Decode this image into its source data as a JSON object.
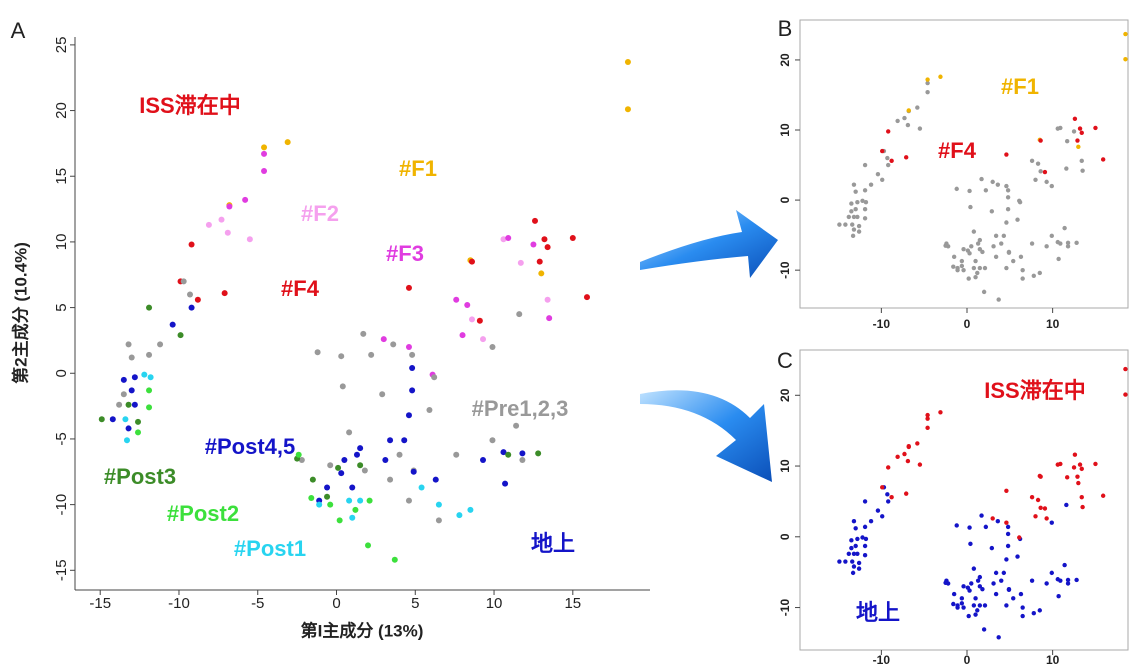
{
  "chart_data": [
    {
      "type": "scatter",
      "panel": "A",
      "xlabel": "第I主成分 (13%)",
      "ylabel": "第2主成分 (10.4%)",
      "xlim": [
        -16.6,
        19.9
      ],
      "ylim": [
        -16.5,
        25.6
      ],
      "xticks": [
        -15,
        -10,
        -5,
        0,
        5,
        10,
        15
      ],
      "yticks": [
        -15,
        -10,
        -5,
        0,
        5,
        10,
        15,
        20,
        25
      ],
      "annotations": [
        {
          "text": "ISS滞在中",
          "color": "#e0101a"
        },
        {
          "text": "地上",
          "color": "#1414c8"
        }
      ],
      "series": [
        {
          "name": "#F1",
          "color": "#f0b400",
          "x": [
            18.5,
            18.5,
            -4.6,
            -3.1,
            -6.8,
            8.5,
            13.0
          ],
          "y": [
            23.7,
            20.1,
            17.2,
            17.6,
            12.8,
            8.6,
            7.6
          ]
        },
        {
          "name": "#F2",
          "color": "#f5a0ee",
          "x": [
            -8.1,
            -6.9,
            -5.5,
            -7.3,
            10.6,
            11.7,
            13.4,
            8.6,
            9.3
          ],
          "y": [
            11.3,
            10.7,
            10.2,
            11.7,
            10.2,
            8.4,
            5.6,
            4.1,
            2.6
          ]
        },
        {
          "name": "#F3",
          "color": "#e03ce0",
          "x": [
            -4.6,
            -4.6,
            -5.8,
            -6.8,
            10.9,
            12.5,
            7.6,
            8.3,
            13.5,
            3.0,
            4.6,
            6.1,
            8.0
          ],
          "y": [
            16.7,
            15.4,
            13.2,
            12.7,
            10.3,
            9.8,
            5.6,
            5.2,
            4.2,
            2.6,
            2.0,
            -0.1,
            2.9
          ]
        },
        {
          "name": "#F4",
          "color": "#e0101a",
          "x": [
            -9.2,
            -9.9,
            -8.8,
            -7.1,
            4.6,
            8.6,
            9.1,
            12.6,
            13.2,
            15.0,
            15.9,
            12.9,
            13.4
          ],
          "y": [
            9.8,
            7.0,
            5.6,
            6.1,
            6.5,
            8.5,
            4.0,
            11.6,
            10.2,
            10.3,
            5.8,
            8.5,
            9.6
          ]
        },
        {
          "name": "#Pre1,2,3",
          "color": "#999999",
          "x": [
            -13.2,
            -13.0,
            -11.9,
            -11.2,
            -9.7,
            -9.3,
            -1.2,
            0.3,
            1.7,
            2.2,
            3.6,
            4.8,
            6.2,
            0.4,
            2.9,
            5.9,
            0.8,
            4.9,
            4.0,
            7.6,
            9.9,
            11.4,
            11.8,
            -0.4,
            1.8,
            3.4,
            4.6,
            -2.2,
            6.5,
            9.9,
            11.6,
            -13.8,
            -13.5
          ],
          "y": [
            2.2,
            1.2,
            1.4,
            2.2,
            7.0,
            6.0,
            1.6,
            1.3,
            3.0,
            1.4,
            2.2,
            1.4,
            -0.3,
            -1.0,
            -1.6,
            -2.8,
            -4.5,
            -7.4,
            -6.2,
            -6.2,
            -5.1,
            -4.0,
            -6.6,
            -7.0,
            -7.4,
            -8.1,
            -9.7,
            -6.6,
            -11.2,
            2.0,
            4.5,
            -2.4,
            -1.6
          ]
        },
        {
          "name": "#Post4,5",
          "color": "#1414c8",
          "x": [
            -9.2,
            -10.4,
            -12.8,
            -13.0,
            -12.8,
            -13.2,
            -14.2,
            4.8,
            4.8,
            4.6,
            3.4,
            4.3,
            0.5,
            1.5,
            9.3,
            10.6,
            10.7,
            11.8,
            3.1,
            0.3,
            -0.6,
            1.0,
            4.9,
            6.3,
            -1.1,
            1.3,
            -13.5
          ],
          "y": [
            5.0,
            3.7,
            -0.3,
            -1.3,
            -2.4,
            -4.2,
            -3.5,
            0.4,
            -1.3,
            -3.2,
            -5.1,
            -5.1,
            -6.6,
            -5.7,
            -6.6,
            -6.0,
            -8.4,
            -6.1,
            -6.6,
            -7.6,
            -8.7,
            -8.7,
            -7.5,
            -8.1,
            -9.7,
            -6.2,
            -0.5
          ]
        },
        {
          "name": "#Post3",
          "color": "#3c8c28",
          "x": [
            -11.9,
            -9.9,
            -13.2,
            -14.9,
            -12.6,
            -2.5,
            -1.5,
            0.1,
            1.5,
            10.9,
            12.8,
            -0.6
          ],
          "y": [
            5.0,
            2.9,
            -2.4,
            -3.5,
            -3.7,
            -6.5,
            -8.1,
            -7.2,
            -7.0,
            -6.2,
            -6.1,
            -9.4
          ]
        },
        {
          "name": "#Post2",
          "color": "#3ce03c",
          "x": [
            -11.9,
            -11.9,
            -12.6,
            -2.4,
            -1.6,
            -0.4,
            1.2,
            2.0,
            3.7,
            2.1,
            0.2
          ],
          "y": [
            -1.3,
            -2.6,
            -4.5,
            -6.2,
            -9.5,
            -10.0,
            -10.4,
            -13.1,
            -14.2,
            -9.7,
            -11.2
          ]
        },
        {
          "name": "#Post1",
          "color": "#28d4f0",
          "x": [
            -13.4,
            -13.3,
            -12.2,
            -11.8,
            0.8,
            1.5,
            1.0,
            5.4,
            6.5,
            8.5,
            7.8,
            -1.1
          ],
          "y": [
            -3.5,
            -5.1,
            -0.1,
            -0.3,
            -9.7,
            -9.7,
            -11.0,
            -8.7,
            -10.0,
            -10.4,
            -10.8,
            -10.0
          ]
        }
      ]
    },
    {
      "type": "scatter",
      "panel": "B",
      "xlim": [
        -19.5,
        18.8
      ],
      "ylim": [
        -15.4,
        25.7
      ],
      "xticks": [
        -10,
        0,
        10
      ],
      "yticks": [
        -10,
        0,
        10,
        20
      ],
      "series": [
        {
          "color": "#999999",
          "x": [
            -8.1,
            -6.9,
            -5.5,
            -7.3,
            10.6,
            11.7,
            13.4,
            8.6,
            9.3,
            -4.6,
            -4.6,
            -5.8,
            -6.8,
            10.9,
            12.5,
            7.6,
            8.3,
            13.5,
            3.0,
            4.6,
            6.1,
            8.0,
            -13.2,
            -13.0,
            -11.9,
            -11.2,
            -9.7,
            -9.3,
            -1.2,
            0.3,
            1.7,
            2.2,
            3.6,
            4.8,
            6.2,
            0.4,
            2.9,
            5.9,
            0.8,
            4.9,
            4.0,
            7.6,
            9.9,
            11.4,
            11.8,
            -0.4,
            1.8,
            3.4,
            4.6,
            -2.2,
            6.5,
            9.9,
            11.6,
            -13.8,
            -13.5,
            -9.2,
            -10.4,
            -12.8,
            -13.0,
            -12.8,
            -13.2,
            -14.2,
            4.8,
            4.8,
            4.6,
            3.4,
            4.3,
            0.5,
            1.5,
            9.3,
            10.6,
            10.7,
            11.8,
            3.1,
            0.3,
            -0.6,
            1.0,
            4.9,
            6.3,
            -1.1,
            1.3,
            -13.5,
            -11.9,
            -9.9,
            -13.2,
            -14.9,
            -12.6,
            -2.5,
            -1.5,
            0.1,
            1.5,
            10.9,
            12.8,
            -0.6,
            -11.9,
            -11.9,
            -12.6,
            -2.4,
            -1.6,
            -0.4,
            1.2,
            2.0,
            3.7,
            2.1,
            0.2,
            -13.4,
            -13.3,
            -12.2,
            -11.8,
            0.8,
            1.5,
            1.0,
            5.4,
            6.5,
            8.5,
            7.8,
            -1.1
          ],
          "y": [
            11.3,
            10.7,
            10.2,
            11.7,
            10.2,
            8.4,
            5.6,
            4.1,
            2.6,
            16.7,
            15.4,
            13.2,
            12.7,
            10.3,
            9.8,
            5.6,
            5.2,
            4.2,
            2.6,
            2.0,
            -0.1,
            2.9,
            2.2,
            1.2,
            1.4,
            2.2,
            7.0,
            6.0,
            1.6,
            1.3,
            3.0,
            1.4,
            2.2,
            1.4,
            -0.3,
            -1.0,
            -1.6,
            -2.8,
            -4.5,
            -7.4,
            -6.2,
            -6.2,
            -5.1,
            -4.0,
            -6.6,
            -7.0,
            -7.4,
            -8.1,
            -9.7,
            -6.6,
            -11.2,
            2.0,
            4.5,
            -2.4,
            -1.6,
            5.0,
            3.7,
            -0.3,
            -1.3,
            -2.4,
            -4.2,
            -3.5,
            0.4,
            -1.3,
            -3.2,
            -5.1,
            -5.1,
            -6.6,
            -5.7,
            -6.6,
            -6.0,
            -8.4,
            -6.1,
            -6.6,
            -7.6,
            -8.7,
            -8.7,
            -7.5,
            -8.1,
            -9.7,
            -6.2,
            -0.5,
            5.0,
            2.9,
            -2.4,
            -3.5,
            -3.7,
            -6.5,
            -8.1,
            -7.2,
            -7.0,
            -6.2,
            -6.1,
            -9.4,
            -1.3,
            -2.6,
            -4.5,
            -6.2,
            -9.5,
            -10.0,
            -10.4,
            -13.1,
            -14.2,
            -9.7,
            -11.2,
            -3.5,
            -5.1,
            -0.1,
            -0.3,
            -9.7,
            -9.7,
            -11.0,
            -8.7,
            -10.0,
            -10.4,
            -10.8,
            -10.0
          ]
        },
        {
          "name": "#F1",
          "color": "#f0b400",
          "x": [
            18.5,
            18.5,
            -4.6,
            -3.1,
            -6.8,
            8.5,
            13.0
          ],
          "y": [
            23.7,
            20.1,
            17.2,
            17.6,
            12.8,
            8.6,
            7.6
          ]
        },
        {
          "name": "#F4",
          "color": "#e0101a",
          "x": [
            -9.2,
            -9.9,
            -8.8,
            -7.1,
            4.6,
            8.6,
            9.1,
            12.6,
            13.2,
            15.0,
            15.9,
            12.9,
            13.4
          ],
          "y": [
            9.8,
            7.0,
            5.6,
            6.1,
            6.5,
            8.5,
            4.0,
            11.6,
            10.2,
            10.3,
            5.8,
            8.5,
            9.6
          ]
        }
      ]
    },
    {
      "type": "scatter",
      "panel": "C",
      "xlim": [
        -19.5,
        18.8
      ],
      "ylim": [
        -16.0,
        26.4
      ],
      "xticks": [
        -10,
        0,
        10
      ],
      "yticks": [
        -10,
        0,
        10,
        20
      ],
      "series": [
        {
          "name": "地上",
          "color": "#1414c8",
          "x": [
            -13.2,
            -13.0,
            -11.9,
            -11.2,
            -9.7,
            -9.3,
            -1.2,
            0.3,
            1.7,
            2.2,
            3.6,
            4.8,
            6.2,
            0.4,
            2.9,
            5.9,
            0.8,
            4.9,
            4.0,
            7.6,
            9.9,
            11.4,
            11.8,
            -0.4,
            1.8,
            3.4,
            4.6,
            -2.2,
            6.5,
            9.9,
            11.6,
            -13.8,
            -13.5,
            -9.2,
            -10.4,
            -12.8,
            -13.0,
            -12.8,
            -13.2,
            -14.2,
            4.8,
            4.8,
            4.6,
            3.4,
            4.3,
            0.5,
            1.5,
            9.3,
            10.6,
            10.7,
            11.8,
            3.1,
            0.3,
            -0.6,
            1.0,
            4.9,
            6.3,
            -1.1,
            1.3,
            -13.5,
            -11.9,
            -9.9,
            -13.2,
            -14.9,
            -12.6,
            -2.5,
            -1.5,
            0.1,
            1.5,
            10.9,
            12.8,
            -0.6,
            -11.9,
            -11.9,
            -12.6,
            -2.4,
            -1.6,
            -0.4,
            1.2,
            2.0,
            3.7,
            2.1,
            0.2,
            -13.4,
            -13.3,
            -12.2,
            -11.8,
            0.8,
            1.5,
            1.0,
            5.4,
            6.5,
            8.5,
            7.8,
            -1.1
          ],
          "y": [
            2.2,
            1.2,
            1.4,
            2.2,
            7.0,
            6.0,
            1.6,
            1.3,
            3.0,
            1.4,
            2.2,
            1.4,
            -0.3,
            -1.0,
            -1.6,
            -2.8,
            -4.5,
            -7.4,
            -6.2,
            -6.2,
            -5.1,
            -4.0,
            -6.6,
            -7.0,
            -7.4,
            -8.1,
            -9.7,
            -6.6,
            -11.2,
            2.0,
            4.5,
            -2.4,
            -1.6,
            5.0,
            3.7,
            -0.3,
            -1.3,
            -2.4,
            -4.2,
            -3.5,
            0.4,
            -1.3,
            -3.2,
            -5.1,
            -5.1,
            -6.6,
            -5.7,
            -6.6,
            -6.0,
            -8.4,
            -6.1,
            -6.6,
            -7.6,
            -8.7,
            -8.7,
            -7.5,
            -8.1,
            -9.7,
            -6.2,
            -0.5,
            5.0,
            2.9,
            -2.4,
            -3.5,
            -3.7,
            -6.5,
            -8.1,
            -7.2,
            -7.0,
            -6.2,
            -6.1,
            -9.4,
            -1.3,
            -2.6,
            -4.5,
            -6.2,
            -9.5,
            -10.0,
            -10.4,
            -13.1,
            -14.2,
            -9.7,
            -11.2,
            -3.5,
            -5.1,
            -0.1,
            -0.3,
            -9.7,
            -9.7,
            -11.0,
            -8.7,
            -10.0,
            -10.4,
            -10.8,
            -10.0
          ]
        },
        {
          "name": "ISS滞在中",
          "color": "#e0101a",
          "x": [
            18.5,
            18.5,
            -4.6,
            -3.1,
            -6.8,
            8.5,
            13.0,
            -8.1,
            -6.9,
            -5.5,
            -7.3,
            10.6,
            11.7,
            13.4,
            8.6,
            9.3,
            -4.6,
            -4.6,
            -5.8,
            -6.8,
            10.9,
            12.5,
            7.6,
            8.3,
            13.5,
            3.0,
            4.6,
            6.1,
            8.0,
            -9.2,
            -9.9,
            -8.8,
            -7.1,
            4.6,
            8.6,
            9.1,
            12.6,
            13.2,
            15.0,
            15.9,
            12.9,
            13.4
          ],
          "y": [
            23.7,
            20.1,
            17.2,
            17.6,
            12.8,
            8.6,
            7.6,
            11.3,
            10.7,
            10.2,
            11.7,
            10.2,
            8.4,
            5.6,
            4.1,
            2.6,
            16.7,
            15.4,
            13.2,
            12.7,
            10.3,
            9.8,
            5.6,
            5.2,
            4.2,
            2.6,
            2.0,
            -0.1,
            2.9,
            9.8,
            7.0,
            5.6,
            6.1,
            6.5,
            8.5,
            4.0,
            11.6,
            10.2,
            10.3,
            5.8,
            8.5,
            9.6
          ]
        }
      ]
    }
  ]
}
